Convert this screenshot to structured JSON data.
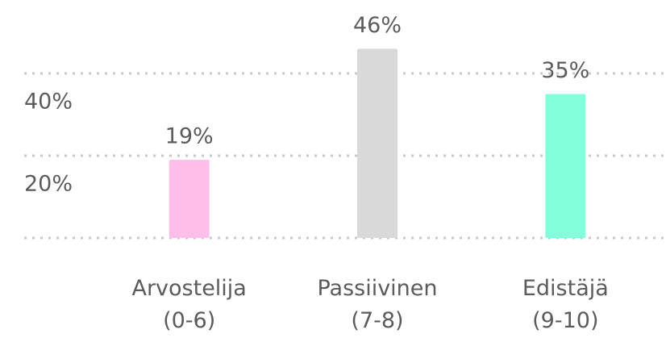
{
  "chart_data": {
    "type": "bar",
    "categories": [
      [
        "Arvostelija",
        "(0-6)"
      ],
      [
        "Passiivinen",
        "(7-8)"
      ],
      [
        "Edistäjä",
        "(9-10)"
      ]
    ],
    "values": [
      19,
      46,
      35
    ],
    "value_labels": [
      "19%",
      "46%",
      "35%"
    ],
    "colors": [
      "#ffbde9",
      "#d9d9d9",
      "#84ffdb"
    ],
    "ylim": [
      0,
      50
    ],
    "yticks": [
      {
        "value": 20,
        "label": "20%"
      },
      {
        "value": 40,
        "label": "40%"
      }
    ],
    "grid": true
  }
}
